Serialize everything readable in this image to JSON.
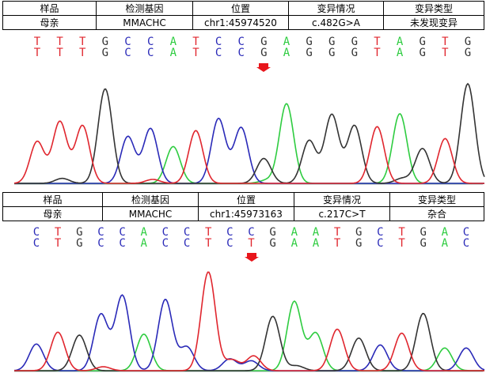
{
  "colors": {
    "A": "#2ecc40",
    "C": "#2a2ab8",
    "G": "#333333",
    "T": "#e0262e",
    "arrow": "#e8151b"
  },
  "panels": [
    {
      "headers": [
        "样品",
        "检测基因",
        "位置",
        "变异情况",
        "变异类型"
      ],
      "row": [
        "母亲",
        "MMACHC",
        "chr1:45974520",
        "c.482G>A",
        "未发现变异"
      ],
      "seq_top": [
        "T",
        "T",
        "T",
        "G",
        "C",
        "C",
        "A",
        "T",
        "C",
        "C",
        "G",
        "A",
        "G",
        "G",
        "G",
        "T",
        "A",
        "G",
        "T",
        "G"
      ],
      "seq_bottom": [
        "T",
        "T",
        "T",
        "G",
        "C",
        "C",
        "A",
        "T",
        "C",
        "C",
        "G",
        "A",
        "G",
        "G",
        "G",
        "T",
        "A",
        "G",
        "T",
        "G"
      ],
      "arrow_index": 10
    },
    {
      "headers": [
        "样品",
        "检测基因",
        "位置",
        "变异情况",
        "变异类型"
      ],
      "row": [
        "母亲",
        "MMACHC",
        "chr1:45973163",
        "c.217C>T",
        "杂合"
      ],
      "seq_top": [
        "C",
        "T",
        "G",
        "C",
        "C",
        "A",
        "C",
        "C",
        "T",
        "C",
        "C",
        "G",
        "A",
        "A",
        "T",
        "G",
        "C",
        "T",
        "G",
        "A",
        "C"
      ],
      "seq_bottom": [
        "C",
        "T",
        "G",
        "C",
        "C",
        "A",
        "C",
        "C",
        "T",
        "C",
        "T",
        "G",
        "A",
        "A",
        "T",
        "G",
        "C",
        "T",
        "G",
        "A",
        "C"
      ],
      "arrow_index": 10
    }
  ],
  "chart_data": [
    {
      "type": "line",
      "title": "",
      "peaks": [
        {
          "base": "T",
          "value": 0.42
        },
        {
          "base": "T",
          "value": 0.62
        },
        {
          "base": "T",
          "value": 0.58
        },
        {
          "base": "G",
          "value": 0.95
        },
        {
          "base": "C",
          "value": 0.47
        },
        {
          "base": "C",
          "value": 0.55
        },
        {
          "base": "A",
          "value": 0.37
        },
        {
          "base": "T",
          "value": 0.53
        },
        {
          "base": "C",
          "value": 0.65
        },
        {
          "base": "C",
          "value": 0.56
        },
        {
          "base": "G",
          "value": 0.25
        },
        {
          "base": "A",
          "value": 0.8
        },
        {
          "base": "G",
          "value": 0.43
        },
        {
          "base": "G",
          "value": 0.69
        },
        {
          "base": "G",
          "value": 0.58
        },
        {
          "base": "T",
          "value": 0.57
        },
        {
          "base": "A",
          "value": 0.7
        },
        {
          "base": "G",
          "value": 0.35
        },
        {
          "base": "T",
          "value": 0.45
        },
        {
          "base": "G",
          "value": 1.0
        }
      ],
      "secondary": [
        {
          "index": 1,
          "base": "G",
          "value": 0.05
        },
        {
          "index": 5,
          "base": "T",
          "value": 0.04
        },
        {
          "index": 10,
          "base": "A",
          "value": 0.03
        },
        {
          "index": 16,
          "base": "G",
          "value": 0.05
        }
      ]
    },
    {
      "type": "line",
      "title": "",
      "peaks": [
        {
          "base": "C",
          "value": 0.27
        },
        {
          "base": "T",
          "value": 0.39
        },
        {
          "base": "G",
          "value": 0.36
        },
        {
          "base": "C",
          "value": 0.57
        },
        {
          "base": "C",
          "value": 0.76
        },
        {
          "base": "A",
          "value": 0.37
        },
        {
          "base": "C",
          "value": 0.72
        },
        {
          "base": "C",
          "value": 0.24
        },
        {
          "base": "T",
          "value": 1.0
        },
        {
          "base": "C",
          "value": 0.12
        },
        {
          "base": "C",
          "value": 0.1
        },
        {
          "base": "G",
          "value": 0.55
        },
        {
          "base": "A",
          "value": 0.7
        },
        {
          "base": "A",
          "value": 0.38
        },
        {
          "base": "T",
          "value": 0.42
        },
        {
          "base": "G",
          "value": 0.33
        },
        {
          "base": "C",
          "value": 0.26
        },
        {
          "base": "T",
          "value": 0.38
        },
        {
          "base": "G",
          "value": 0.58
        },
        {
          "base": "A",
          "value": 0.23
        },
        {
          "base": "C",
          "value": 0.23
        }
      ],
      "secondary": [
        {
          "index": 9,
          "base": "T",
          "value": 0.11
        },
        {
          "index": 10,
          "base": "T",
          "value": 0.15
        },
        {
          "index": 3,
          "base": "T",
          "value": 0.04
        },
        {
          "index": 12,
          "base": "G",
          "value": 0.05
        }
      ]
    }
  ]
}
